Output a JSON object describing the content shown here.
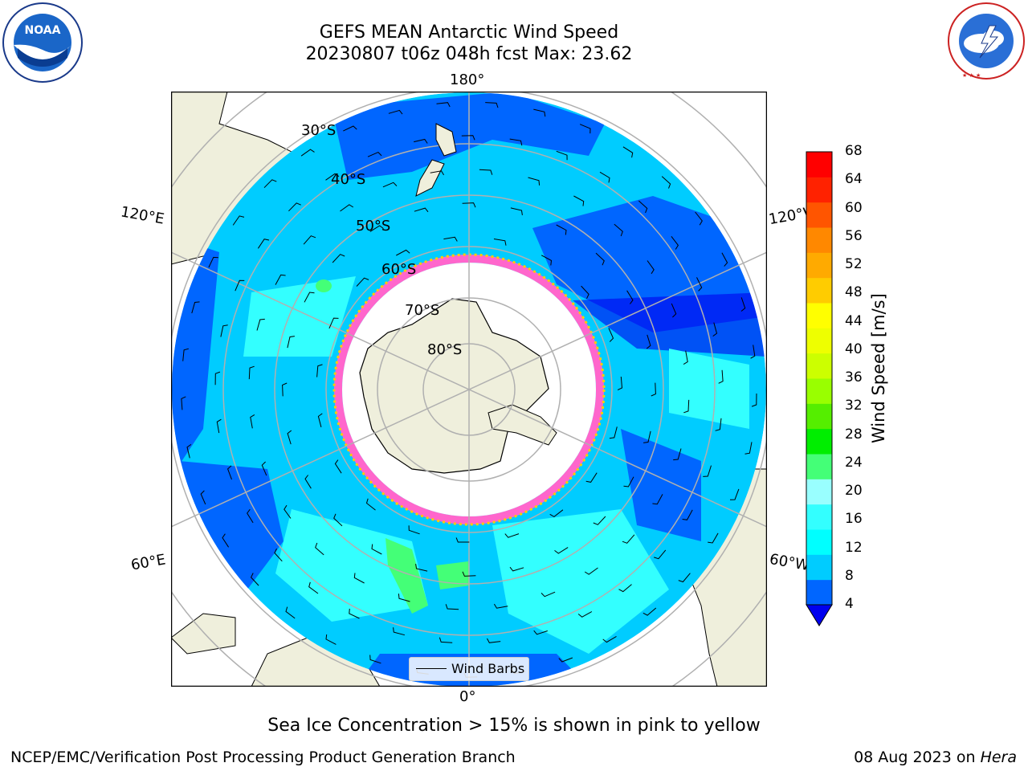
{
  "header": {
    "title_line1": "GEFS MEAN Antarctic Wind Speed",
    "title_line2": "20230807 t06z 048h fcst   Max: 23.62"
  },
  "logos": {
    "left": {
      "text": "NOAA",
      "ring_text": "NATIONAL OCEANIC AND ATMOSPHERIC ADMINISTRATION · U.S. DEPARTMENT OF COMMERCE"
    },
    "right": {
      "ring_text": "NATIONAL WEATHER SERVICE"
    }
  },
  "map": {
    "longitude_labels": [
      "180°",
      "120°E",
      "120°W",
      "60°E",
      "60°W",
      "0°"
    ],
    "latitude_labels": [
      "30°S",
      "40°S",
      "50°S",
      "60°S",
      "70°S",
      "80°S"
    ],
    "legend_label": "Wind Barbs"
  },
  "colorbar": {
    "label": "Wind Speed [m/s]",
    "ticks": [
      "68",
      "64",
      "60",
      "56",
      "52",
      "48",
      "44",
      "40",
      "36",
      "32",
      "28",
      "24",
      "20",
      "16",
      "12",
      "8",
      "4"
    ],
    "colors_low_to_high": [
      "#0066ff",
      "#00ccff",
      "#00ffff",
      "#33ffff",
      "#99ffff",
      "#44ff77",
      "#00ee00",
      "#55ee00",
      "#99ff00",
      "#ccff00",
      "#eeff00",
      "#ffff00",
      "#ffcc00",
      "#ffaa00",
      "#ff8800",
      "#ff5500",
      "#ff2200",
      "#ff0000"
    ],
    "under_color": "#0000ee"
  },
  "caption": "Sea Ice Concentration > 15% is shown in pink to yellow",
  "footer": {
    "left": "NCEP/EMC/Verification Post Processing Product Generation Branch",
    "right_date": "08 Aug 2023 on ",
    "right_machine": "Hera"
  }
}
